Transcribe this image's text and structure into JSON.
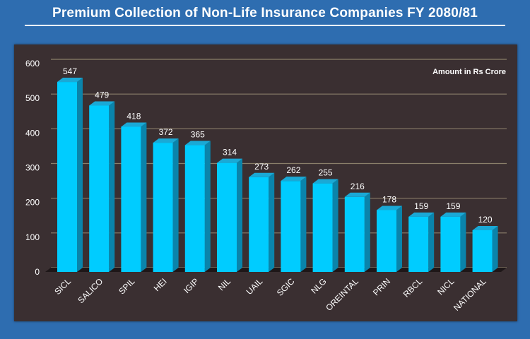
{
  "header": {
    "title": "Premium Collection of Non-Life Insurance Companies FY 2080/81"
  },
  "chart_data": {
    "type": "bar",
    "title": "Premium Collection of Non-Life Insurance Companies FY 2080/81",
    "annotation": "Amount in Rs Crore",
    "categories": [
      "SICL",
      "SALICO",
      "SPIL",
      "HEI",
      "IGIP",
      "NIL",
      "UAIL",
      "SGIC",
      "NLG",
      "OREINTAL",
      "PRIN",
      "RBCL",
      "NICL",
      "NATIONAL"
    ],
    "values": [
      547,
      479,
      418,
      372,
      365,
      314,
      273,
      262,
      255,
      216,
      178,
      159,
      159,
      120
    ],
    "yticks": [
      0,
      100,
      200,
      300,
      400,
      500,
      600
    ],
    "ylim": [
      0,
      600
    ],
    "grid": true,
    "legend": "none",
    "colors": {
      "bar_front": "#00ccff",
      "bar_side": "#0a84ab",
      "bar_top": "#1aa9d6",
      "grid": "#8a7f6a",
      "text": "#ffffff"
    }
  }
}
